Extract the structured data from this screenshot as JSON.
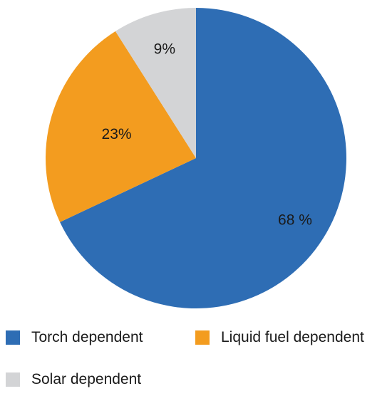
{
  "chart_data": {
    "type": "pie",
    "title": "",
    "slices": [
      {
        "label": "Torch dependent",
        "value": 68,
        "display": "68 %",
        "color": "#2e6db4"
      },
      {
        "label": "Liquid fuel dependent",
        "value": 23,
        "display": "23%",
        "color": "#f39c1f"
      },
      {
        "label": "Solar dependent",
        "value": 9,
        "display": "9%",
        "color": "#d3d4d6"
      }
    ],
    "start_angle": "12 o'clock",
    "direction": "clockwise",
    "legend_position": "bottom"
  }
}
